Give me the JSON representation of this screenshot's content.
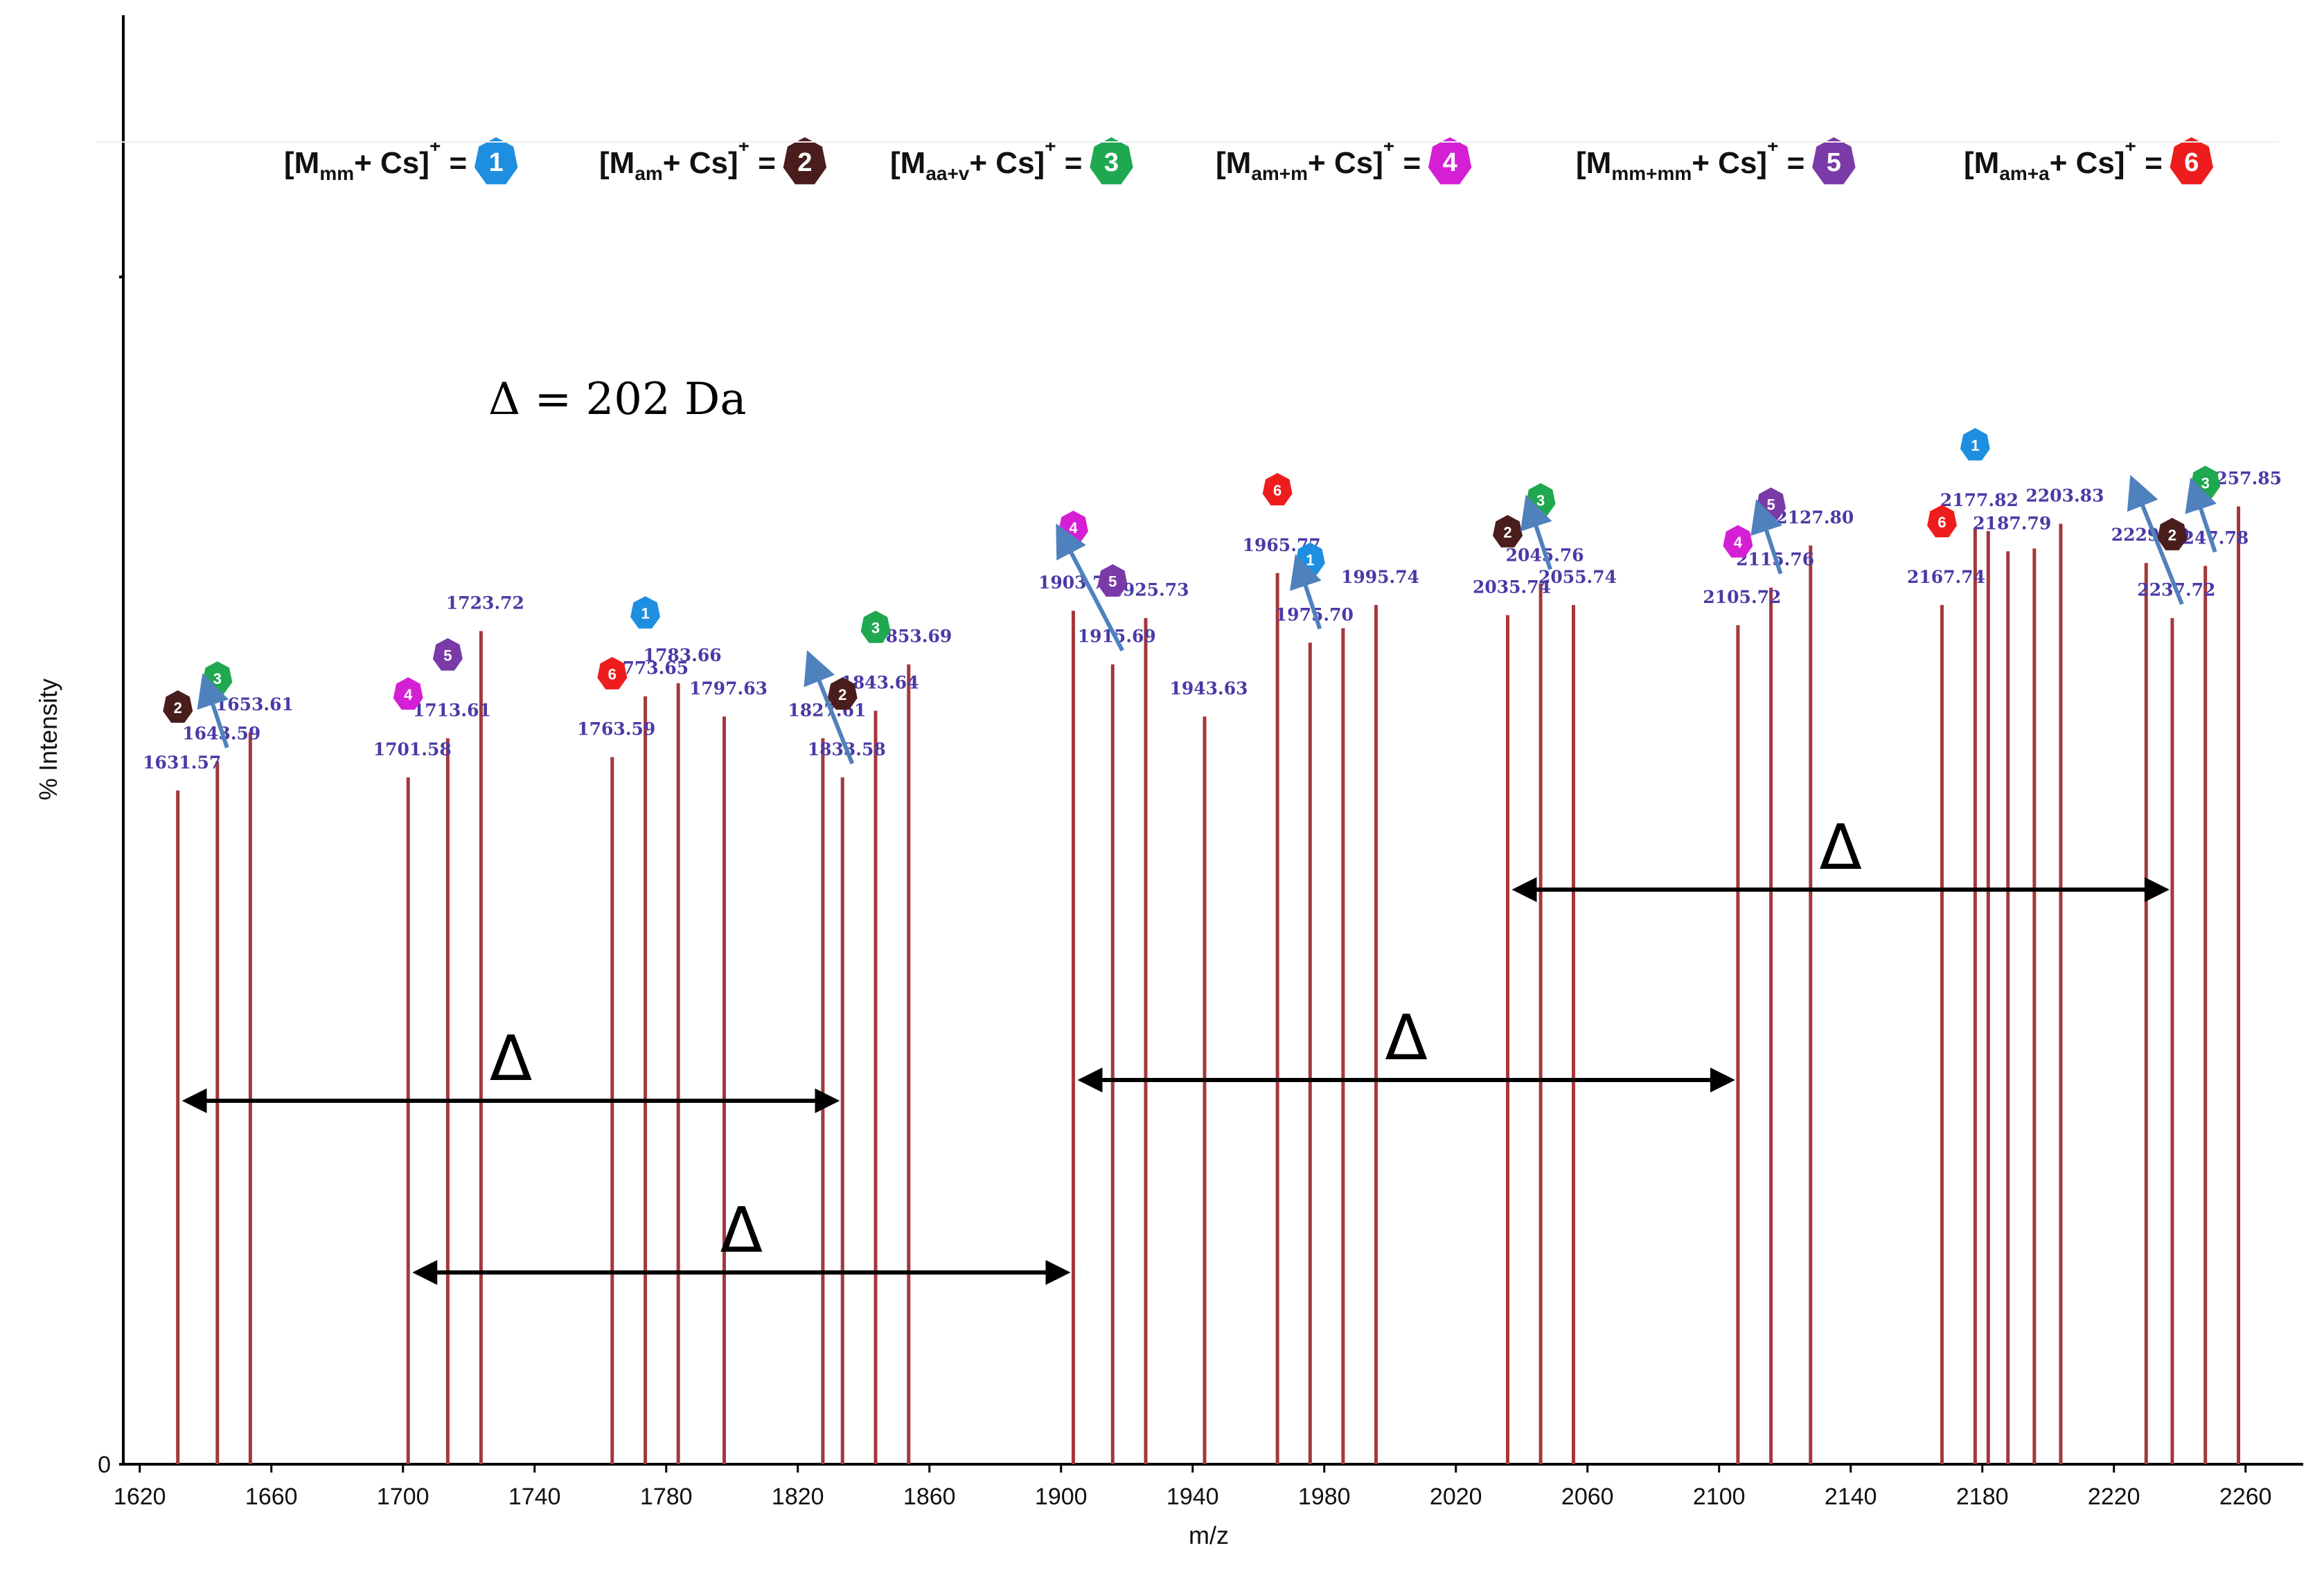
{
  "chart_data": {
    "type": "bar",
    "xlabel": "m/z",
    "ylabel": "% Intensity",
    "xlim": [
      1615,
      2270
    ],
    "ylim": [
      0,
      100
    ],
    "x_ticks": [
      "1620",
      "1660",
      "1700",
      "1740",
      "1780",
      "1820",
      "1860",
      "1900",
      "1940",
      "1980",
      "2020",
      "2060",
      "2100",
      "2140",
      "2180",
      "2220",
      "2260"
    ],
    "y_ticks": [
      "0"
    ],
    "grid": false,
    "bar_color": "#a4383c",
    "peaks": [
      {
        "mz": 1631.57,
        "intensity": 46.5,
        "label": "1631.57"
      },
      {
        "mz": 1643.59,
        "intensity": 48.5,
        "label": "1643.59"
      },
      {
        "mz": 1653.61,
        "intensity": 50.5,
        "label": "1653.61"
      },
      {
        "mz": 1701.58,
        "intensity": 47.4,
        "label": "1701.58"
      },
      {
        "mz": 1713.61,
        "intensity": 50.1,
        "label": "1713.61"
      },
      {
        "mz": 1723.72,
        "intensity": 57.5,
        "label": "1723.72"
      },
      {
        "mz": 1763.59,
        "intensity": 48.8,
        "label": "1763.59"
      },
      {
        "mz": 1773.65,
        "intensity": 53.0,
        "label": "1773.65"
      },
      {
        "mz": 1783.66,
        "intensity": 53.9,
        "label": "1783.66"
      },
      {
        "mz": 1797.63,
        "intensity": 51.6,
        "label": "1797.63"
      },
      {
        "mz": 1827.61,
        "intensity": 50.1,
        "label": "1827.61"
      },
      {
        "mz": 1833.58,
        "intensity": 47.4,
        "label": "1833.58"
      },
      {
        "mz": 1843.64,
        "intensity": 52.0,
        "label": "1843.64"
      },
      {
        "mz": 1853.69,
        "intensity": 55.2,
        "label": "1853.69"
      },
      {
        "mz": 1903.73,
        "intensity": 58.9,
        "label": "1903.73"
      },
      {
        "mz": 1915.69,
        "intensity": 55.2,
        "label": "1915.69"
      },
      {
        "mz": 1925.73,
        "intensity": 58.4,
        "label": "1925.73"
      },
      {
        "mz": 1943.63,
        "intensity": 51.6,
        "label": "1943.63"
      },
      {
        "mz": 1965.77,
        "intensity": 61.5,
        "label": "1965.77"
      },
      {
        "mz": 1975.7,
        "intensity": 56.7,
        "label": "1975.70"
      },
      {
        "mz": 1985.72,
        "intensity": 57.7,
        "label": ""
      },
      {
        "mz": 1995.74,
        "intensity": 59.3,
        "label": "1995.74"
      },
      {
        "mz": 2035.74,
        "intensity": 58.6,
        "label": "2035.74"
      },
      {
        "mz": 2045.76,
        "intensity": 60.8,
        "label": "2045.76"
      },
      {
        "mz": 2055.74,
        "intensity": 59.3,
        "label": "2055.74"
      },
      {
        "mz": 2105.72,
        "intensity": 57.9,
        "label": "2105.72"
      },
      {
        "mz": 2115.76,
        "intensity": 60.5,
        "label": "2115.76"
      },
      {
        "mz": 2127.8,
        "intensity": 63.4,
        "label": "2127.80"
      },
      {
        "mz": 2167.74,
        "intensity": 59.3,
        "label": "2167.74"
      },
      {
        "mz": 2177.82,
        "intensity": 64.6,
        "label": "2177.82"
      },
      {
        "mz": 2181.8,
        "intensity": 64.4,
        "label": ""
      },
      {
        "mz": 2187.79,
        "intensity": 63.0,
        "label": "2187.79"
      },
      {
        "mz": 2195.81,
        "intensity": 63.2,
        "label": ""
      },
      {
        "mz": 2203.83,
        "intensity": 64.9,
        "label": "2203.83"
      },
      {
        "mz": 2229.79,
        "intensity": 62.2,
        "label": "2229.79"
      },
      {
        "mz": 2237.72,
        "intensity": 58.4,
        "label": "2237.72"
      },
      {
        "mz": 2247.78,
        "intensity": 62.0,
        "label": "2247.78"
      },
      {
        "mz": 2257.85,
        "intensity": 66.1,
        "label": "2257.85"
      }
    ],
    "legend": [
      {
        "pre": "[M",
        "sub": "mm",
        "post": "+ Cs]",
        "sup": "+",
        "eq": " =",
        "badge": "1",
        "color": "#1e8fe0"
      },
      {
        "pre": "[M",
        "sub": "am",
        "post": "+ Cs]",
        "sup": "+",
        "eq": " =",
        "badge": "2",
        "color": "#4a1d1d"
      },
      {
        "pre": "[M",
        "sub": "aa+v",
        "post": "+ Cs]",
        "sup": "+",
        "eq": " =",
        "badge": "3",
        "color": "#1fa84f"
      },
      {
        "pre": "[M",
        "sub": "am+m",
        "post": "+ Cs]",
        "sup": "+",
        "eq": " =",
        "badge": "4",
        "color": "#d51fd5"
      },
      {
        "pre": "[M",
        "sub": "mm+mm",
        "post": "+ Cs]",
        "sup": "+",
        "eq": " =",
        "badge": "5",
        "color": "#7a3aa8"
      },
      {
        "pre": "[M",
        "sub": "am+a",
        "post": "+ Cs]",
        "sup": "+",
        "eq": " =",
        "badge": "6",
        "color": "#ee1c1c"
      }
    ],
    "badges": [
      {
        "n": "2",
        "mz": 1631.57
      },
      {
        "n": "3",
        "mz": 1643.59
      },
      {
        "n": "4",
        "mz": 1701.58
      },
      {
        "n": "5",
        "mz": 1713.61
      },
      {
        "n": "1",
        "mz": 1773.65
      },
      {
        "n": "6",
        "mz": 1763.59
      },
      {
        "n": "2",
        "mz": 1833.58
      },
      {
        "n": "3",
        "mz": 1843.64
      },
      {
        "n": "4",
        "mz": 1903.73
      },
      {
        "n": "5",
        "mz": 1915.69
      },
      {
        "n": "6",
        "mz": 1965.77
      },
      {
        "n": "1",
        "mz": 1975.7
      },
      {
        "n": "2",
        "mz": 2035.74
      },
      {
        "n": "3",
        "mz": 2045.76
      },
      {
        "n": "4",
        "mz": 2105.72
      },
      {
        "n": "5",
        "mz": 2115.76
      },
      {
        "n": "1",
        "mz": 2177.82
      },
      {
        "n": "6",
        "mz": 2167.74
      },
      {
        "n": "2",
        "mz": 2237.72
      },
      {
        "n": "3",
        "mz": 2247.78
      }
    ],
    "delta_equation": "Δ = 202 Da",
    "delta_symbol": "Δ",
    "delta_spans": [
      [
        1631.57,
        1833.58
      ],
      [
        1701.58,
        1903.73
      ],
      [
        1903.73,
        2105.72
      ],
      [
        2035.74,
        2237.72
      ]
    ]
  }
}
